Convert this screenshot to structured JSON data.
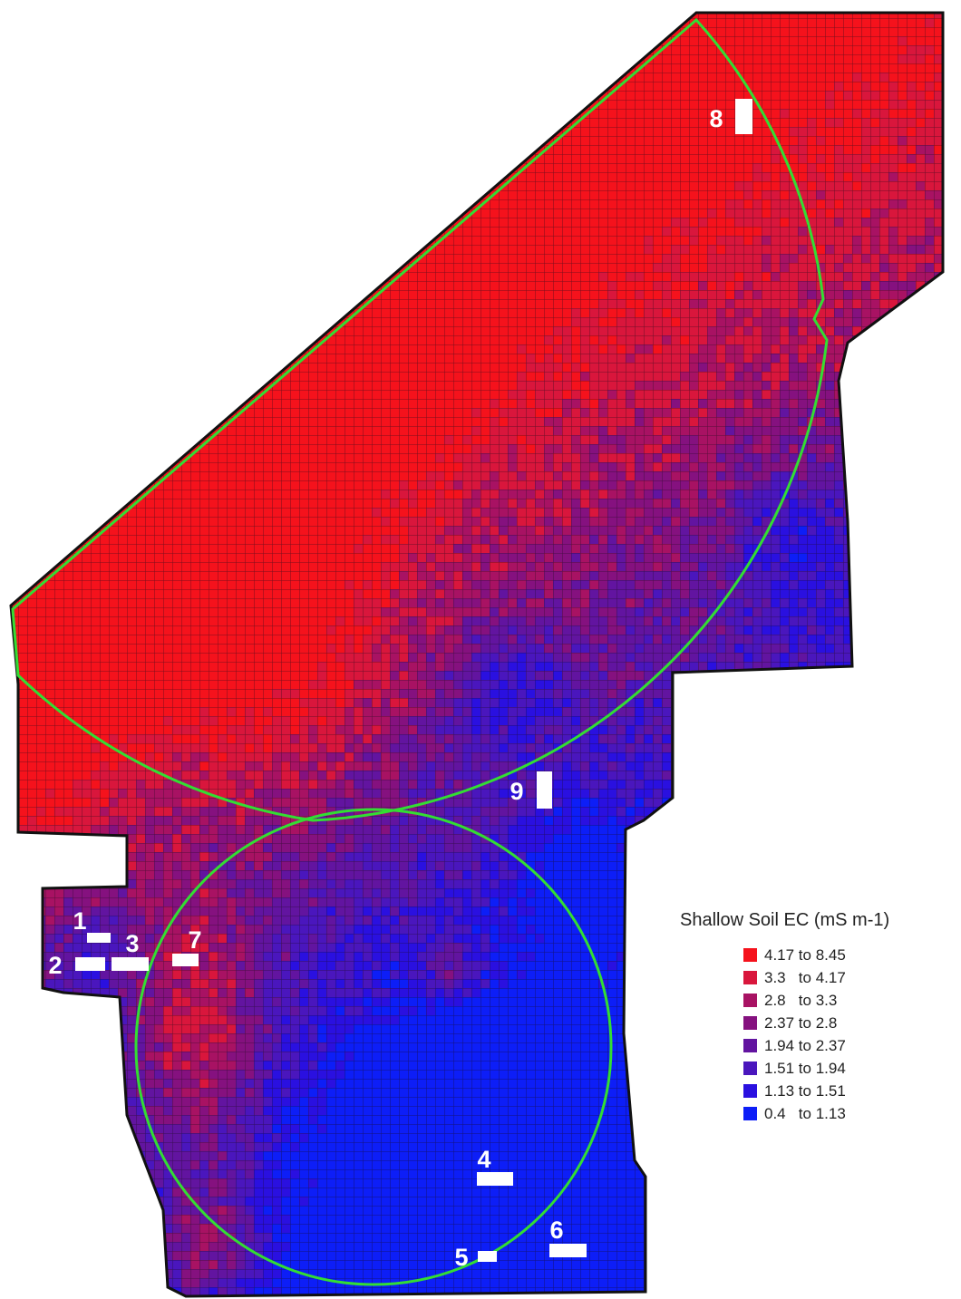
{
  "legend": {
    "title": "Shallow Soil EC (mS m-1)",
    "items": [
      {
        "label": "4.17 to 8.45",
        "color": "#f5121c"
      },
      {
        "label": "3.3   to 4.17",
        "color": "#d9163c"
      },
      {
        "label": "2.8   to 3.3",
        "color": "#a81263"
      },
      {
        "label": "2.37 to 2.8",
        "color": "#85117f"
      },
      {
        "label": "1.94 to 2.37",
        "color": "#6214a0"
      },
      {
        "label": "1.51 to 1.94",
        "color": "#4a16bd"
      },
      {
        "label": "1.13 to 1.51",
        "color": "#2a10e0"
      },
      {
        "label": "0.4   to 1.13",
        "color": "#0d1ef7"
      }
    ]
  },
  "sample_sites": [
    {
      "label": "1"
    },
    {
      "label": "2"
    },
    {
      "label": "3"
    },
    {
      "label": "4"
    },
    {
      "label": "5"
    },
    {
      "label": "6"
    },
    {
      "label": "7"
    },
    {
      "label": "8"
    },
    {
      "label": "9"
    }
  ],
  "colors": {
    "pivot_outline": "#33dd33",
    "field_outline": "#111111",
    "grid_line": "#1a0a1a",
    "site_marker": "#ffffff"
  }
}
